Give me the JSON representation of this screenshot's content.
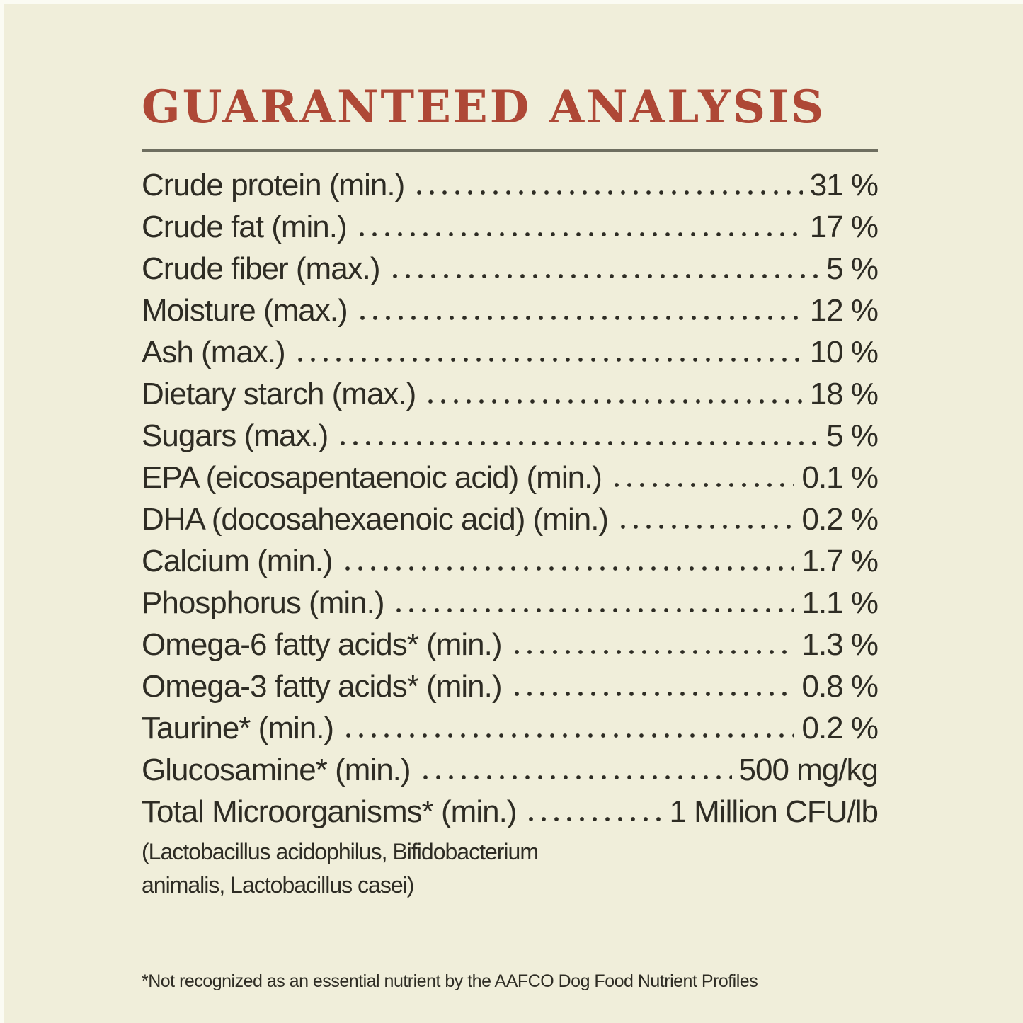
{
  "panel": {
    "title": "GUARANTEED ANALYSIS",
    "microorganisms_note": "(Lactobacillus acidophilus, Bifidobacterium\nanimalis, Lactobacillus casei)",
    "footnote": "*Not recognized as an essential nutrient by the AAFCO Dog Food Nutrient Profiles",
    "colors": {
      "background": "#f0eeda",
      "title_red": "#ae4836",
      "text": "#2e2c24",
      "divider": "#6e6e60"
    }
  },
  "analysis": {
    "rows": [
      {
        "label": "Crude protein (min.)",
        "value": "31 %"
      },
      {
        "label": "Crude fat (min.)",
        "value": "17 %"
      },
      {
        "label": "Crude fiber (max.)",
        "value": "5 %"
      },
      {
        "label": "Moisture (max.)",
        "value": "12 %"
      },
      {
        "label": "Ash (max.)",
        "value": "10 %"
      },
      {
        "label": "Dietary starch (max.)",
        "value": "18 %"
      },
      {
        "label": "Sugars (max.)",
        "value": "5 %"
      },
      {
        "label": "EPA (eicosapentaenoic acid) (min.)",
        "value": "0.1 %"
      },
      {
        "label": "DHA (docosahexaenoic acid) (min.)",
        "value": "0.2 %"
      },
      {
        "label": "Calcium (min.)",
        "value": "1.7 %"
      },
      {
        "label": "Phosphorus (min.)",
        "value": "1.1 %"
      },
      {
        "label": "Omega-6 fatty acids* (min.)",
        "value": "1.3 %"
      },
      {
        "label": "Omega-3 fatty acids* (min.)",
        "value": "0.8 %"
      },
      {
        "label": "Taurine* (min.)",
        "value": "0.2 %"
      },
      {
        "label": "Glucosamine* (min.)",
        "value": "500 mg/kg"
      },
      {
        "label": "Total Microorganisms* (min.)",
        "value": "1 Million CFU/lb"
      }
    ]
  }
}
